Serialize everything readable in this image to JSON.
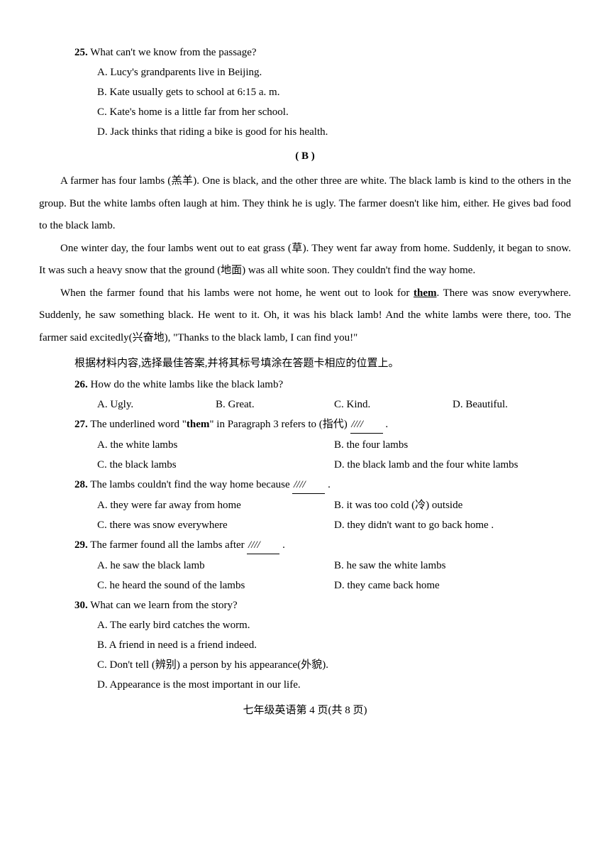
{
  "q25": {
    "num": "25.",
    "text": "What can't we know from the passage?",
    "a": "A.  Lucy's grandparents live in Beijing.",
    "b": "B.  Kate usually gets to school at 6:15 a. m.",
    "c": "C.  Kate's home is a little far from her school.",
    "d": "D.  Jack thinks that riding a bike is good for his health."
  },
  "section_b": "( B )",
  "passage": {
    "p1_a": "A farmer has four lambs (羔羊). One is black, and the other three are white. The black lamb is kind to the others in the group. But the white lambs often laugh at him. They think he is ugly. The farmer doesn't like him, either. He gives bad food to the black lamb.",
    "p2_a": "One winter day, the four lambs went out to eat grass (草). They went far away from home. Suddenly, it began to snow. It was such a heavy snow that the ground (地面) was all white soon. They couldn't find the way home.",
    "p3_a": "When the farmer found that his lambs were not home, he went out to look for ",
    "p3_them": "them",
    "p3_b": ". There was snow everywhere. Suddenly, he saw something black. He went to it. Oh, it was his black lamb! And the white lambs were there, too. The farmer said excitedly(兴奋地), \"Thanks to the black lamb, I can find you!\""
  },
  "instruction": "根据材料内容,选择最佳答案,并将其标号填涂在答题卡相应的位置上。",
  "q26": {
    "num": "26.",
    "text": "How do the white lambs like the black lamb?",
    "a": "A.  Ugly.",
    "b": "B.  Great.",
    "c": "C.  Kind.",
    "d": "D.  Beautiful."
  },
  "q27": {
    "num": "27.",
    "text_a": "The underlined word \"",
    "them": "them",
    "text_b": "\" in Paragraph 3 refers to (指代) ",
    "blank": "////",
    "text_c": " .",
    "a": "A.  the white lambs",
    "b": "B.  the four lambs",
    "c": "C.  the black lambs",
    "d": "D.  the black lamb and the four white lambs"
  },
  "q28": {
    "num": "28.",
    "text_a": "The lambs couldn't find the way home because ",
    "blank": "////",
    "text_b": " .",
    "a": "A.  they were far away from home",
    "b": "B.  it was too cold (冷) outside",
    "c": "C.  there was snow everywhere",
    "d": "D.  they didn't want to go back home  ."
  },
  "q29": {
    "num": "29.",
    "text_a": "The farmer found all the lambs after ",
    "blank": "////",
    "text_b": " .",
    "a": "A.  he saw the black lamb",
    "b": "B.  he saw the white lambs",
    "c": "C.  he heard the sound of the lambs",
    "d": "D.  they came back home"
  },
  "q30": {
    "num": "30.",
    "text": "What can we learn from the story?",
    "a": "A.  The early bird catches the worm.",
    "b": "B.  A friend in need is a friend indeed.",
    "c": "C.  Don't tell (辨别) a person by his appearance(外貌).",
    "d": "D.  Appearance is the most important in our life."
  },
  "footer": "七年级英语第 4 页(共 8 页)"
}
